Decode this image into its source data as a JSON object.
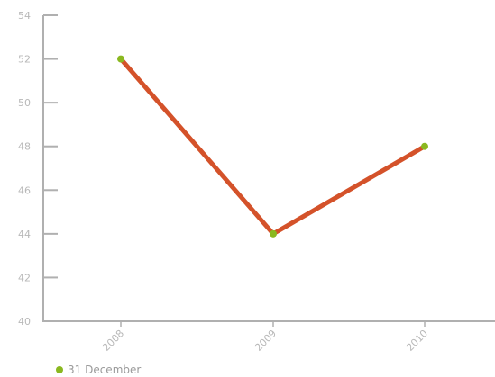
{
  "chart_data": {
    "type": "line",
    "categories": [
      "2008",
      "2009",
      "2010"
    ],
    "series": [
      {
        "name": "31 December",
        "values": [
          52,
          44,
          48
        ]
      }
    ],
    "ylim": [
      40,
      54
    ],
    "yticks": [
      40,
      42,
      44,
      46,
      48,
      50,
      52,
      54
    ],
    "title": "",
    "xlabel": "",
    "ylabel": "",
    "grid": false,
    "legend_position": "bottom-left",
    "colors": {
      "line": "#d4522a",
      "marker": "#8ab820",
      "axis": "#b0b0b0",
      "text": "#b8b8b8"
    }
  },
  "legend": {
    "label": "31 December"
  }
}
